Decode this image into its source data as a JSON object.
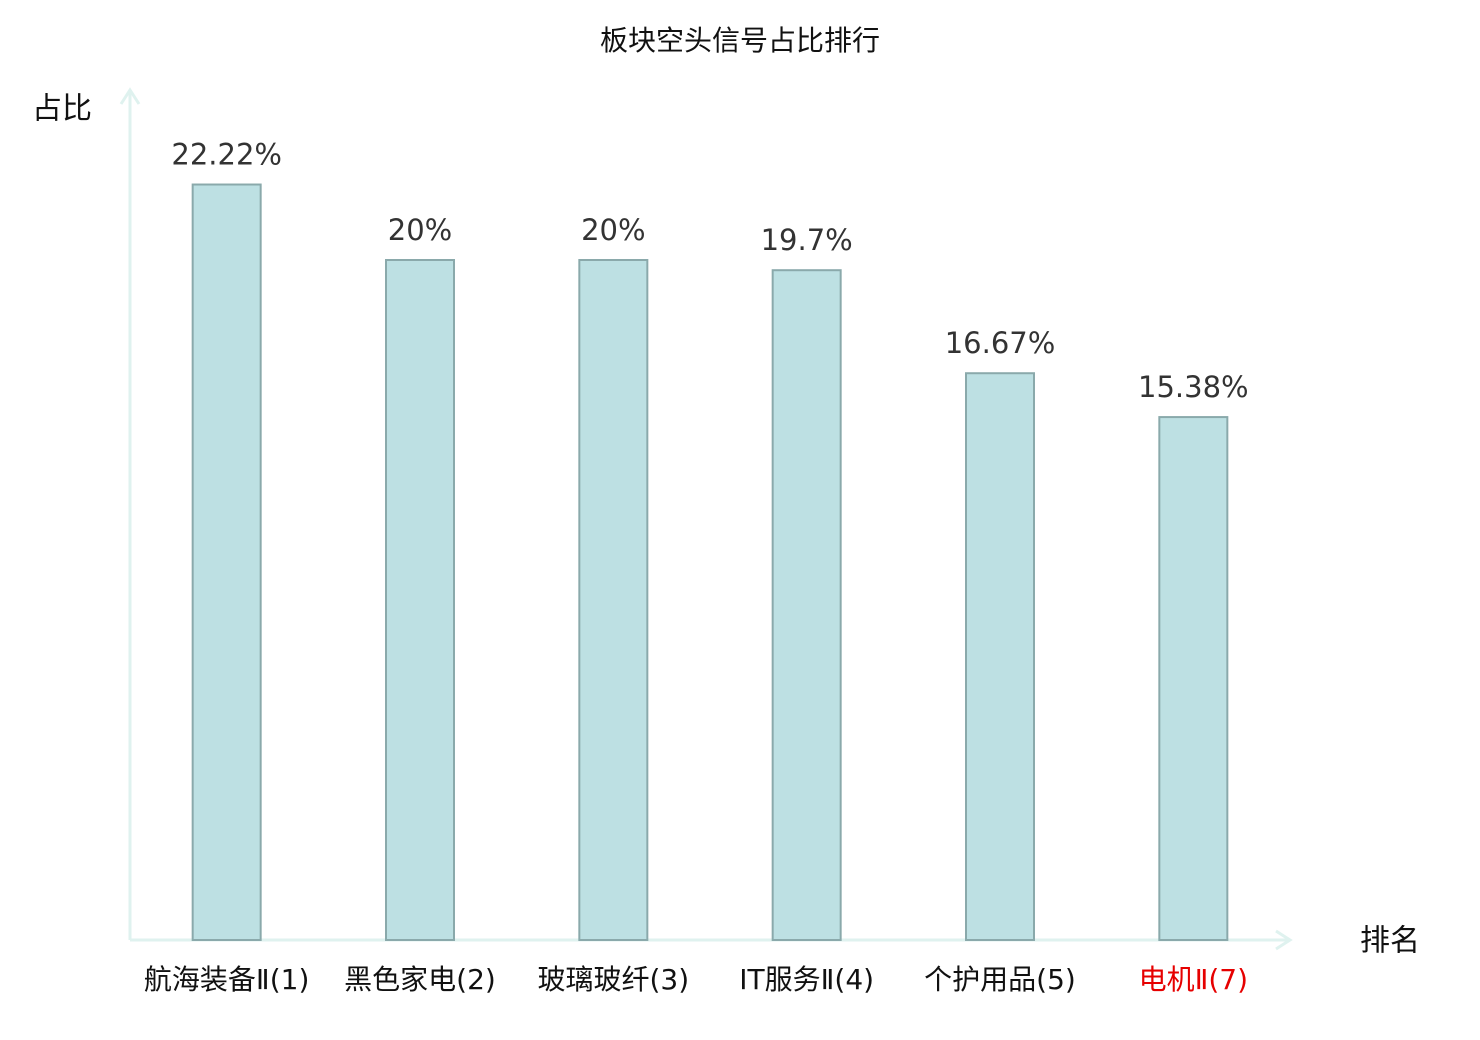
{
  "chart_data": {
    "type": "bar",
    "title": "板块空头信号占比排行",
    "y_label": "占比",
    "x_label": "排名",
    "categories": [
      "航海装备Ⅱ(1)",
      "黑色家电(2)",
      "玻璃玻纤(3)",
      "IT服务Ⅱ(4)",
      "个护用品(5)",
      "电机Ⅱ(7)"
    ],
    "category_colors": [
      "#111111",
      "#111111",
      "#111111",
      "#111111",
      "#111111",
      "#e60000"
    ],
    "values": [
      22.22,
      20,
      20,
      19.7,
      16.67,
      15.38
    ],
    "value_labels": [
      "22.22%",
      "20%",
      "20%",
      "19.7%",
      "16.67%",
      "15.38%"
    ],
    "color": "#bde0e3",
    "edge_color": "#8aa9ab",
    "axis_color": "#dff2ef",
    "ylim": [
      0,
      25
    ]
  }
}
